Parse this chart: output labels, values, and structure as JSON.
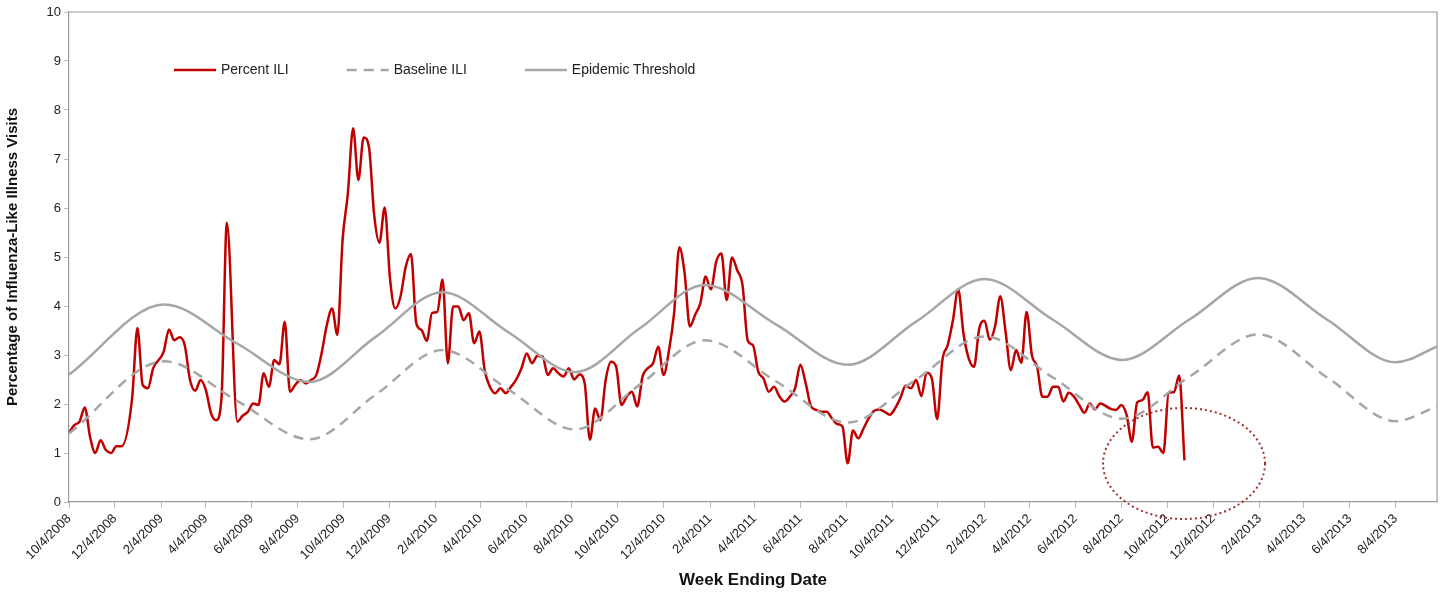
{
  "chart_data": {
    "type": "line",
    "xlabel": "Week Ending Date",
    "ylabel": "Percentage of Influenza-Like Illness Visits",
    "xlim": [
      "2008-10-04",
      "2013-09-28"
    ],
    "ylim": [
      0,
      10
    ],
    "yticks": [
      0,
      1,
      2,
      3,
      4,
      5,
      6,
      7,
      8,
      9,
      10
    ],
    "xticks": [
      {
        "value": "2008-10-04",
        "label": "10/4/2008"
      },
      {
        "value": "2008-12-04",
        "label": "12/4/2008"
      },
      {
        "value": "2009-02-04",
        "label": "2/4/2009"
      },
      {
        "value": "2009-04-04",
        "label": "4/4/2009"
      },
      {
        "value": "2009-06-04",
        "label": "6/4/2009"
      },
      {
        "value": "2009-08-04",
        "label": "8/4/2009"
      },
      {
        "value": "2009-10-04",
        "label": "10/4/2009"
      },
      {
        "value": "2009-12-04",
        "label": "12/4/2009"
      },
      {
        "value": "2010-02-04",
        "label": "2/4/2010"
      },
      {
        "value": "2010-04-04",
        "label": "4/4/2010"
      },
      {
        "value": "2010-06-04",
        "label": "6/4/2010"
      },
      {
        "value": "2010-08-04",
        "label": "8/4/2010"
      },
      {
        "value": "2010-10-04",
        "label": "10/4/2010"
      },
      {
        "value": "2010-12-04",
        "label": "12/4/2010"
      },
      {
        "value": "2011-02-04",
        "label": "2/4/2011"
      },
      {
        "value": "2011-04-04",
        "label": "4/4/2011"
      },
      {
        "value": "2011-06-04",
        "label": "6/4/2011"
      },
      {
        "value": "2011-08-04",
        "label": "8/4/2011"
      },
      {
        "value": "2011-10-04",
        "label": "10/4/2011"
      },
      {
        "value": "2011-12-04",
        "label": "12/4/2011"
      },
      {
        "value": "2012-02-04",
        "label": "2/4/2012"
      },
      {
        "value": "2012-04-04",
        "label": "4/4/2012"
      },
      {
        "value": "2012-06-04",
        "label": "6/4/2012"
      },
      {
        "value": "2012-08-04",
        "label": "8/4/2012"
      },
      {
        "value": "2012-10-04",
        "label": "10/4/2012"
      },
      {
        "value": "2012-12-04",
        "label": "12/4/2012"
      },
      {
        "value": "2013-02-04",
        "label": "2/4/2013"
      },
      {
        "value": "2013-04-04",
        "label": "4/4/2013"
      },
      {
        "value": "2013-06-04",
        "label": "6/4/2013"
      },
      {
        "value": "2013-08-04",
        "label": "8/4/2013"
      }
    ],
    "grid": false,
    "legend": "top left",
    "marker": "none",
    "series": [
      {
        "name": "Percent ILI",
        "color": "#c00000",
        "line_style": "solid",
        "x": [
          "2008-10-04",
          "2008-10-11",
          "2008-10-18",
          "2008-10-25",
          "2008-11-01",
          "2008-11-08",
          "2008-11-15",
          "2008-11-22",
          "2008-11-29",
          "2008-12-06",
          "2008-12-13",
          "2008-12-27",
          "2009-01-03",
          "2009-01-10",
          "2009-01-17",
          "2009-01-24",
          "2009-02-07",
          "2009-02-14",
          "2009-02-21",
          "2009-02-28",
          "2009-03-07",
          "2009-03-14",
          "2009-03-21",
          "2009-03-28",
          "2009-04-04",
          "2009-04-11",
          "2009-04-18",
          "2009-04-25",
          "2009-05-02",
          "2009-05-16",
          "2009-05-23",
          "2009-05-30",
          "2009-06-06",
          "2009-06-13",
          "2009-06-20",
          "2009-06-27",
          "2009-07-04",
          "2009-07-11",
          "2009-07-18",
          "2009-07-25",
          "2009-08-01",
          "2009-08-08",
          "2009-08-15",
          "2009-08-22",
          "2009-08-29",
          "2009-09-05",
          "2009-09-12",
          "2009-09-19",
          "2009-09-26",
          "2009-10-03",
          "2009-10-10",
          "2009-10-17",
          "2009-10-24",
          "2009-10-31",
          "2009-11-07",
          "2009-11-14",
          "2009-11-21",
          "2009-11-28",
          "2009-12-05",
          "2009-12-12",
          "2009-12-19",
          "2009-12-26",
          "2010-01-02",
          "2010-01-09",
          "2010-01-16",
          "2010-01-23",
          "2010-01-30",
          "2010-02-06",
          "2010-02-13",
          "2010-02-20",
          "2010-02-27",
          "2010-03-06",
          "2010-03-13",
          "2010-03-20",
          "2010-03-27",
          "2010-04-03",
          "2010-04-10",
          "2010-04-17",
          "2010-04-24",
          "2010-05-01",
          "2010-05-08",
          "2010-05-15",
          "2010-05-22",
          "2010-05-29",
          "2010-06-05",
          "2010-06-12",
          "2010-06-19",
          "2010-06-26",
          "2010-07-03",
          "2010-07-10",
          "2010-07-17",
          "2010-07-24",
          "2010-07-31",
          "2010-08-07",
          "2010-08-14",
          "2010-08-21",
          "2010-08-28",
          "2010-09-04",
          "2010-09-11",
          "2010-09-18",
          "2010-09-25",
          "2010-10-02",
          "2010-10-09",
          "2010-10-16",
          "2010-10-23",
          "2010-10-30",
          "2010-11-06",
          "2010-11-13",
          "2010-11-20",
          "2010-11-27",
          "2010-12-04",
          "2010-12-11",
          "2010-12-18",
          "2010-12-25",
          "2011-01-01",
          "2011-01-08",
          "2011-01-15",
          "2011-01-22",
          "2011-01-29",
          "2011-02-05",
          "2011-02-12",
          "2011-02-19",
          "2011-02-26",
          "2011-03-05",
          "2011-03-12",
          "2011-03-19",
          "2011-03-26",
          "2011-04-02",
          "2011-04-09",
          "2011-04-16",
          "2011-04-23",
          "2011-04-30",
          "2011-05-07",
          "2011-05-14",
          "2011-05-21",
          "2011-05-28",
          "2011-06-04",
          "2011-06-11",
          "2011-06-18",
          "2011-06-25",
          "2011-07-02",
          "2011-07-09",
          "2011-07-16",
          "2011-07-23",
          "2011-07-30",
          "2011-08-06",
          "2011-08-13",
          "2011-08-20",
          "2011-08-27",
          "2011-09-03",
          "2011-09-10",
          "2011-09-17",
          "2011-09-24",
          "2011-10-01",
          "2011-10-08",
          "2011-10-15",
          "2011-10-22",
          "2011-10-29",
          "2011-11-05",
          "2011-11-12",
          "2011-11-19",
          "2011-11-26",
          "2011-12-03",
          "2011-12-10",
          "2011-12-17",
          "2011-12-24",
          "2011-12-31",
          "2012-01-07",
          "2012-01-14",
          "2012-01-21",
          "2012-01-28",
          "2012-02-04",
          "2012-02-11",
          "2012-02-18",
          "2012-02-25",
          "2012-03-03",
          "2012-03-10",
          "2012-03-17",
          "2012-03-24",
          "2012-03-31",
          "2012-04-07",
          "2012-04-14",
          "2012-04-21",
          "2012-04-28",
          "2012-05-05",
          "2012-05-12",
          "2012-05-19",
          "2012-05-26",
          "2012-06-02",
          "2012-06-09",
          "2012-06-16",
          "2012-06-23",
          "2012-06-30",
          "2012-07-07",
          "2012-07-21",
          "2012-07-28",
          "2012-08-04",
          "2012-08-11",
          "2012-08-18",
          "2012-08-25",
          "2012-09-01",
          "2012-09-08",
          "2012-09-15",
          "2012-09-22",
          "2012-09-29",
          "2012-10-06",
          "2012-10-13",
          "2012-10-20",
          "2012-10-27"
        ],
        "values": [
          1.41,
          1.57,
          1.64,
          1.93,
          1.33,
          1.0,
          1.26,
          1.06,
          1.0,
          1.14,
          1.14,
          2.12,
          3.55,
          2.39,
          2.32,
          2.73,
          3.07,
          3.52,
          3.3,
          3.36,
          3.2,
          2.49,
          2.27,
          2.49,
          2.29,
          1.81,
          1.67,
          2.15,
          5.7,
          1.64,
          1.76,
          1.84,
          2.01,
          1.98,
          2.63,
          2.35,
          2.9,
          2.81,
          3.68,
          2.25,
          2.39,
          2.49,
          2.42,
          2.49,
          2.59,
          3.03,
          3.61,
          3.95,
          3.41,
          5.35,
          6.3,
          7.63,
          6.57,
          7.44,
          7.25,
          5.86,
          5.29,
          6.01,
          4.57,
          3.95,
          4.19,
          4.8,
          5.06,
          3.65,
          3.51,
          3.29,
          3.86,
          3.88,
          4.54,
          2.83,
          3.99,
          3.99,
          3.71,
          3.85,
          3.24,
          3.48,
          2.69,
          2.35,
          2.22,
          2.32,
          2.22,
          2.35,
          2.5,
          2.73,
          3.03,
          2.83,
          2.98,
          2.97,
          2.59,
          2.73,
          2.63,
          2.56,
          2.73,
          2.5,
          2.6,
          2.43,
          1.27,
          1.91,
          1.67,
          2.49,
          2.86,
          2.76,
          1.98,
          2.15,
          2.25,
          1.95,
          2.56,
          2.73,
          2.83,
          3.17,
          2.59,
          3.07,
          3.85,
          5.2,
          4.67,
          3.58,
          3.82,
          4.06,
          4.6,
          4.34,
          4.9,
          5.07,
          4.12,
          4.99,
          4.73,
          4.43,
          3.29,
          3.2,
          2.66,
          2.52,
          2.25,
          2.35,
          2.16,
          2.05,
          2.15,
          2.32,
          2.8,
          2.43,
          1.96,
          1.88,
          1.84,
          1.84,
          1.71,
          1.59,
          1.54,
          0.79,
          1.46,
          1.3,
          1.5,
          1.71,
          1.86,
          1.89,
          1.84,
          1.78,
          1.91,
          2.12,
          2.37,
          2.32,
          2.49,
          2.16,
          2.64,
          2.52,
          1.69,
          2.9,
          3.2,
          3.71,
          4.34,
          3.44,
          2.93,
          2.76,
          3.54,
          3.7,
          3.31,
          3.58,
          4.2,
          3.48,
          2.69,
          3.1,
          2.84,
          3.88,
          3.0,
          2.76,
          2.15,
          2.15,
          2.35,
          2.35,
          2.05,
          2.23,
          2.15,
          1.98,
          1.82,
          2.01,
          1.89,
          2.01,
          1.9,
          1.88,
          1.98,
          1.78,
          1.23,
          2.03,
          2.08,
          2.24,
          1.11,
          1.13,
          1.0,
          2.23,
          2.24,
          2.58,
          0.85
        ]
      },
      {
        "name": "Baseline ILI",
        "color": "#a6a6a6",
        "line_style": "dashed",
        "x": [
          "2008-10-04",
          "2009-02-08",
          "2009-05-15",
          "2009-08-20",
          "2009-11-16",
          "2010-02-13",
          "2010-05-12",
          "2010-08-08",
          "2010-11-02",
          "2011-01-28",
          "2011-05-03",
          "2011-08-06",
          "2011-11-05",
          "2012-02-04",
          "2012-05-05",
          "2012-08-05",
          "2012-11-03",
          "2013-02-02",
          "2013-05-05",
          "2013-08-04",
          "2013-09-28"
        ],
        "values": [
          1.4,
          2.87,
          2.07,
          1.28,
          2.19,
          3.1,
          2.29,
          1.48,
          2.39,
          3.3,
          2.46,
          1.62,
          2.5,
          3.38,
          2.54,
          1.7,
          2.56,
          3.42,
          2.54,
          1.65,
          1.95
        ]
      },
      {
        "name": "Epidemic Threshold",
        "color": "#a6a6a6",
        "line_style": "solid",
        "x": [
          "2008-10-04",
          "2009-02-08",
          "2009-05-15",
          "2009-08-20",
          "2009-11-16",
          "2010-02-13",
          "2010-05-12",
          "2010-08-08",
          "2010-11-02",
          "2011-01-28",
          "2011-05-03",
          "2011-08-06",
          "2011-11-05",
          "2012-02-04",
          "2012-05-05",
          "2012-08-05",
          "2012-11-03",
          "2013-02-02",
          "2013-05-05",
          "2013-08-04",
          "2013-09-28"
        ],
        "values": [
          2.6,
          4.03,
          3.24,
          2.45,
          3.37,
          4.28,
          3.46,
          2.65,
          3.54,
          4.43,
          3.62,
          2.8,
          3.68,
          4.55,
          3.72,
          2.9,
          3.73,
          4.57,
          3.72,
          2.85,
          3.17
        ]
      }
    ]
  }
}
